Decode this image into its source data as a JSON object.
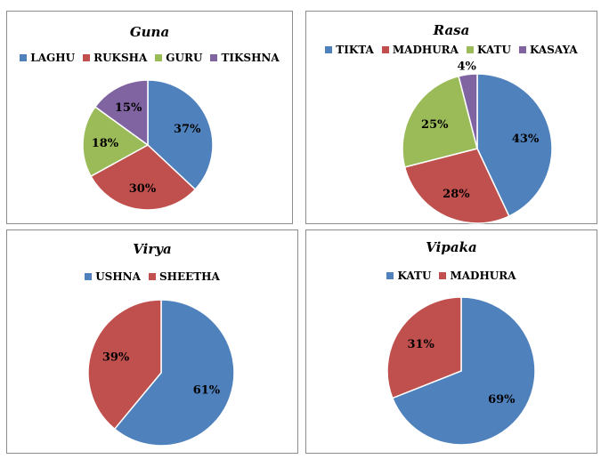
{
  "chart_data": [
    {
      "type": "pie",
      "title": "Guna",
      "categories": [
        "LAGHU",
        "RUKSHA",
        "GURU",
        "TIKSHNA"
      ],
      "values": [
        37,
        30,
        18,
        15
      ],
      "labels": [
        "37%",
        "30%",
        "18%",
        "15%"
      ],
      "colors": [
        "#4f81bd",
        "#c0504d",
        "#9bbb59",
        "#8064a2"
      ],
      "legend": "top"
    },
    {
      "type": "pie",
      "title": "Rasa",
      "categories": [
        "TIKTA",
        "MADHURA",
        "KATU",
        "KASAYA"
      ],
      "values": [
        43,
        28,
        25,
        4
      ],
      "labels": [
        "43%",
        "28%",
        "25%",
        "4%"
      ],
      "colors": [
        "#4f81bd",
        "#c0504d",
        "#9bbb59",
        "#8064a2"
      ],
      "legend": "top"
    },
    {
      "type": "pie",
      "title": "Virya",
      "categories": [
        "USHNA",
        "SHEETHA"
      ],
      "values": [
        61,
        39
      ],
      "labels": [
        "61%",
        "39%"
      ],
      "colors": [
        "#4f81bd",
        "#c0504d"
      ],
      "legend": "top"
    },
    {
      "type": "pie",
      "title": "Vipaka",
      "categories": [
        "KATU",
        "MADHURA"
      ],
      "values": [
        69,
        31
      ],
      "labels": [
        "69%",
        "31%"
      ],
      "colors": [
        "#4f81bd",
        "#c0504d"
      ],
      "legend": "top"
    }
  ]
}
